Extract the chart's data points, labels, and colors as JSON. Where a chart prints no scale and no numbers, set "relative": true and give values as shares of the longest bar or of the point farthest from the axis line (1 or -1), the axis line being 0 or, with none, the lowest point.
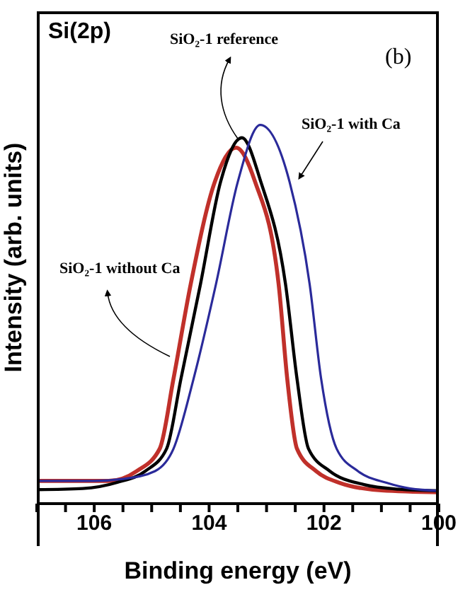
{
  "chart_data": {
    "type": "line",
    "xlabel": "Binding energy (eV)",
    "ylabel": "Intensity (arb. units)",
    "relative": true,
    "legend": false,
    "marker": "none",
    "line_style": "solid",
    "xlim": [
      107,
      100
    ],
    "xticks": [
      {
        "value": 107,
        "label": null
      },
      {
        "value": 106.5,
        "label": null
      },
      106,
      {
        "value": 105.5,
        "label": null
      },
      {
        "value": 105,
        "label": null
      },
      {
        "value": 104.5,
        "label": null
      },
      104,
      {
        "value": 103.5,
        "label": null
      },
      {
        "value": 103,
        "label": null
      },
      {
        "value": 102.5,
        "label": null
      },
      102,
      {
        "value": 101.5,
        "label": null
      },
      {
        "value": 101,
        "label": null
      },
      {
        "value": 100.5,
        "label": null
      },
      100
    ],
    "annotations": [
      "Si(2p)",
      "(b)"
    ],
    "series": [
      {
        "name": "SiO₂-1 without Ca",
        "color": "#c0302a",
        "x": [
          107,
          106.2,
          105.75,
          105.26,
          104.86,
          104.62,
          104.32,
          103.9,
          103.53,
          103.2,
          102.79,
          102.64,
          102.47,
          102.14,
          101.73,
          101,
          100
        ],
        "values": [
          0.06,
          0.06,
          0.06,
          0.086,
          0.145,
          0.33,
          0.58,
          0.85,
          0.94,
          0.85,
          0.58,
          0.33,
          0.145,
          0.086,
          0.055,
          0.035,
          0.03
        ]
      },
      {
        "name": "SiO₂-1 reference",
        "color": "#000000",
        "x": [
          107,
          106.2,
          105.6,
          105.11,
          104.74,
          104.49,
          104.15,
          103.8,
          103.43,
          103.1,
          102.67,
          102.47,
          102.27,
          101.9,
          101.3,
          100.7,
          100
        ],
        "values": [
          0.037,
          0.04,
          0.056,
          0.086,
          0.145,
          0.33,
          0.58,
          0.85,
          0.966,
          0.85,
          0.58,
          0.33,
          0.145,
          0.086,
          0.05,
          0.038,
          0.034
        ]
      },
      {
        "name": "SiO₂-1 with Ca",
        "color": "#2a2a9a",
        "x": [
          107,
          106,
          105.5,
          104.94,
          104.62,
          104.27,
          103.88,
          103.5,
          103.11,
          102.6,
          102.25,
          102.05,
          101.78,
          101.41,
          100.91,
          100.5,
          100
        ],
        "values": [
          0.06,
          0.06,
          0.065,
          0.086,
          0.145,
          0.33,
          0.58,
          0.85,
          1,
          0.85,
          0.58,
          0.33,
          0.145,
          0.086,
          0.055,
          0.04,
          0.034
        ]
      }
    ]
  }
}
